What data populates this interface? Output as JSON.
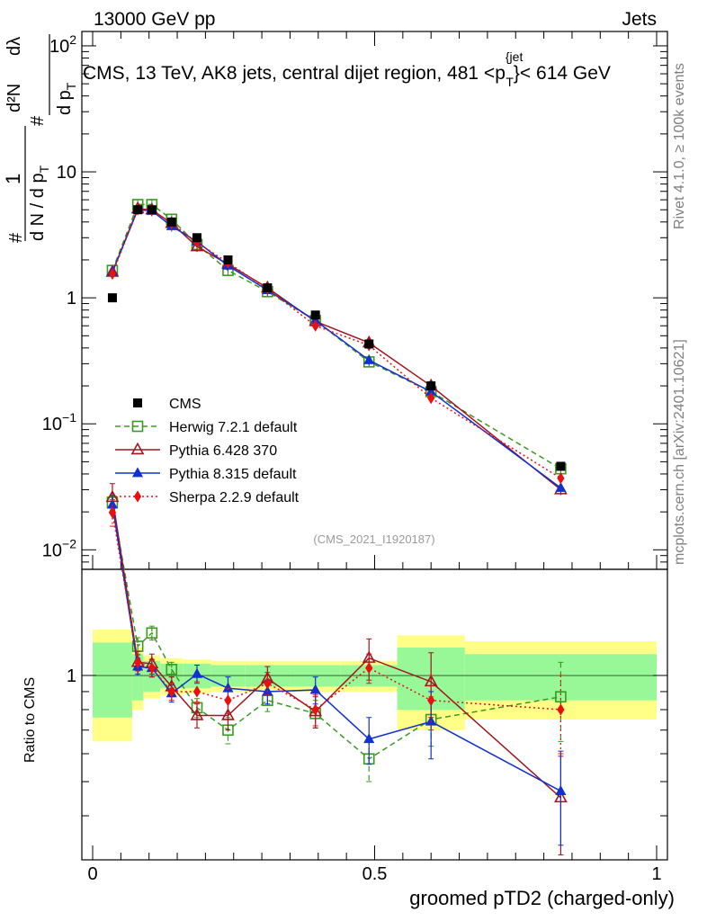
{
  "header": {
    "left": "13000 GeV pp",
    "right": "Jets",
    "title": "CMS, 13 TeV, AK8 jets, central dijet region, 481 <p",
    "title_sup": "{jet",
    "title_sub": "T",
    "title_end": "}< 614 GeV"
  },
  "side_labels": {
    "rivet": "Rivet 4.1.0, ≥ 100k events",
    "mcplots": "mcplots.cern.ch [arXiv:2401.10621]"
  },
  "reference_tag": "(CMS_2021_I1920187)",
  "y_axis_main": {
    "label_numer_hash": "#",
    "label_one": "1",
    "label_denom": "d N / d p",
    "label_denom_sub": "T",
    "label_hash2": "#",
    "label_dp": "d p",
    "label_dp_sub": "T",
    "label_numer": "d²N",
    "label_dl": "dλ",
    "ticks": [
      {
        "value": 0.01,
        "base": "10",
        "exp": "−2"
      },
      {
        "value": 0.1,
        "base": "10",
        "exp": "−1"
      },
      {
        "value": 1,
        "base": "1",
        "exp": ""
      },
      {
        "value": 10,
        "base": "10",
        "exp": ""
      },
      {
        "value": 100,
        "base": "10",
        "exp": "2"
      }
    ]
  },
  "y_axis_ratio": {
    "label": "Ratio to CMS",
    "tick_one": "1"
  },
  "x_axis": {
    "label": "groomed pTD2 (charged-only)",
    "ticks": [
      {
        "value": 0,
        "label": "0"
      },
      {
        "value": 0.5,
        "label": "0.5"
      },
      {
        "value": 1,
        "label": "1"
      }
    ]
  },
  "legend": [
    {
      "key": "cms",
      "label": "CMS"
    },
    {
      "key": "herwig",
      "label": "Herwig 7.2.1 default"
    },
    {
      "key": "py6",
      "label": "Pythia 6.428 370"
    },
    {
      "key": "py8",
      "label": "Pythia 8.315 default"
    },
    {
      "key": "sherpa",
      "label": "Sherpa 2.2.9 default"
    }
  ],
  "colors": {
    "cms": "#000000",
    "herwig": "#3a9a1e",
    "py6": "#a0151e",
    "py8": "#1030d0",
    "sherpa": "#e81010",
    "band_inner": "#98f898",
    "band_outer": "#ffff88"
  },
  "chart_data": {
    "type": "line",
    "xlim": [
      0,
      1
    ],
    "main_ylim": [
      0.007,
      130
    ],
    "main_log": true,
    "ratio_ylim": [
      0.3,
      2.0
    ],
    "ratio_log": true,
    "x": [
      0.035,
      0.08,
      0.105,
      0.14,
      0.185,
      0.24,
      0.31,
      0.395,
      0.49,
      0.6,
      0.83
    ],
    "data": {
      "name": "CMS",
      "x": [
        0.035,
        0.08,
        0.105,
        0.14,
        0.185,
        0.24,
        0.31,
        0.395,
        0.49,
        0.6,
        0.83
      ],
      "values": [
        1.0,
        5.0,
        5.0,
        4.0,
        3.0,
        2.0,
        1.2,
        0.73,
        0.43,
        0.2,
        0.046
      ],
      "x_edges": [
        0.0,
        0.07,
        0.09,
        0.12,
        0.16,
        0.21,
        0.27,
        0.35,
        0.44,
        0.54,
        0.66,
        1.0
      ],
      "ratio_band_inner": [
        0.24,
        0.15,
        0.1,
        0.08,
        0.08,
        0.07,
        0.07,
        0.07,
        0.07,
        0.2,
        0.15
      ],
      "ratio_band_outer": [
        0.35,
        0.2,
        0.14,
        0.12,
        0.11,
        0.1,
        0.1,
        0.1,
        0.1,
        0.3,
        0.25
      ]
    },
    "series": [
      {
        "key": "herwig",
        "name": "Herwig 7.2.1 default",
        "marker": "square-open",
        "dash": "6,4",
        "values": [
          1.65,
          5.5,
          5.5,
          4.2,
          2.65,
          1.65,
          1.12,
          0.66,
          0.31,
          0.18,
          0.044
        ],
        "ratio": [
          3.1,
          1.21,
          1.32,
          1.04,
          0.81,
          0.7,
          0.85,
          0.78,
          0.58,
          0.75,
          0.87
        ],
        "ratio_err": [
          0.15,
          0.07,
          0.06,
          0.05,
          0.05,
          0.06,
          0.06,
          0.07,
          0.08,
          0.12,
          0.22
        ]
      },
      {
        "key": "py6",
        "name": "Pythia 6.428 370",
        "marker": "triangle-open",
        "dash": "",
        "values": [
          1.6,
          5.1,
          5.0,
          3.9,
          2.55,
          1.85,
          1.2,
          0.65,
          0.44,
          0.2,
          0.03
        ],
        "ratio": [
          3.2,
          1.09,
          1.08,
          0.93,
          0.77,
          0.77,
          0.98,
          0.79,
          1.12,
          0.96,
          0.45
        ],
        "ratio_err": [
          0.3,
          0.08,
          0.07,
          0.06,
          0.06,
          0.07,
          0.08,
          0.08,
          0.15,
          0.2,
          0.14
        ]
      },
      {
        "key": "py8",
        "name": "Pythia 8.315 default",
        "marker": "triangle",
        "dash": "",
        "values": [
          1.6,
          5.0,
          4.9,
          3.7,
          2.8,
          1.8,
          1.15,
          0.66,
          0.32,
          0.18,
          0.031
        ],
        "ratio": [
          3.05,
          1.06,
          1.05,
          0.89,
          1.01,
          0.92,
          0.9,
          0.91,
          0.66,
          0.74,
          0.47
        ],
        "ratio_err": [
          0.18,
          0.06,
          0.06,
          0.05,
          0.06,
          0.07,
          0.07,
          0.08,
          0.1,
          0.16,
          0.14
        ]
      },
      {
        "key": "sherpa",
        "name": "Sherpa 2.2.9 default",
        "marker": "diamond",
        "dash": "2,3",
        "values": [
          1.55,
          5.05,
          4.95,
          3.9,
          2.75,
          1.9,
          1.18,
          0.6,
          0.42,
          0.16,
          0.037
        ],
        "ratio": [
          2.9,
          1.09,
          1.05,
          0.9,
          0.9,
          0.85,
          0.95,
          0.8,
          1.05,
          0.85,
          0.8
        ],
        "ratio_err": [
          0.25,
          0.06,
          0.06,
          0.05,
          0.06,
          0.07,
          0.07,
          0.08,
          0.1,
          0.15,
          0.2
        ]
      }
    ],
    "xlabel": "groomed pTD2 (charged-only)",
    "ylabel": "1/(dN/dpT) d2N/(dpT dlambda)",
    "ratio_ylabel": "Ratio to CMS"
  }
}
